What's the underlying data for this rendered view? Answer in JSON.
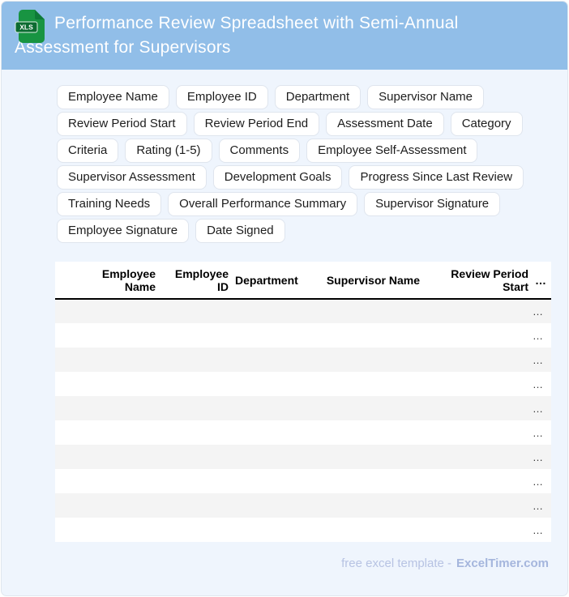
{
  "header": {
    "title": "Performance Review Spreadsheet with Semi-Annual Assessment for Supervisors",
    "icon_label": "XLS"
  },
  "chips": [
    "Employee Name",
    "Employee ID",
    "Department",
    "Supervisor Name",
    "Review Period Start",
    "Review Period End",
    "Assessment Date",
    "Category",
    "Criteria",
    "Rating (1-5)",
    "Comments",
    "Employee Self-Assessment",
    "Supervisor Assessment",
    "Development Goals",
    "Progress Since Last Review",
    "Training Needs",
    "Overall Performance Summary",
    "Supervisor Signature",
    "Employee Signature",
    "Date Signed"
  ],
  "table": {
    "columns": [
      "",
      "Employee Name",
      "Employee ID",
      "Department",
      "Supervisor Name",
      "Review Period Start",
      "…"
    ],
    "rows": 10,
    "row_placeholder": "…"
  },
  "footer": {
    "text": "free excel template -",
    "brand": "ExcelTimer.com"
  },
  "colors": {
    "header_bg": "#91bee8",
    "card_bg": "#eff5fd",
    "icon_green": "#189442",
    "icon_fold_green": "#0e7a38",
    "icon_badge_green": "#0c6b31",
    "zebra_row": "#f4f4f4",
    "footer_text": "#b7c3e3",
    "footer_brand": "#a5b6dd"
  }
}
